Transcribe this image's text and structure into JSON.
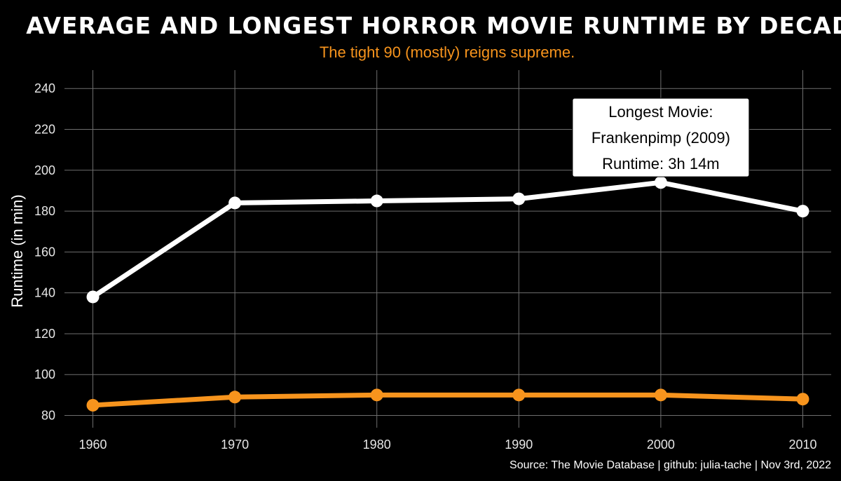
{
  "chart_data": {
    "type": "line",
    "title": "AVERAGE AND LONGEST HORROR MOVIE RUNTIME BY DECADE",
    "subtitle": "The tight 90 (mostly) reigns supreme.",
    "xlabel": "",
    "ylabel": "Runtime (in min)",
    "x": [
      1960,
      1970,
      1980,
      1990,
      2000,
      2010
    ],
    "x_tick_labels": [
      "1960",
      "1970",
      "1980",
      "1990",
      "2000",
      "2010"
    ],
    "y_ticks": [
      80,
      100,
      120,
      140,
      160,
      180,
      200,
      220,
      240
    ],
    "y_tick_labels": [
      "80",
      "100",
      "120",
      "140",
      "160",
      "180",
      "200",
      "220",
      "240"
    ],
    "xlim": [
      1958,
      2012
    ],
    "ylim": [
      74,
      249
    ],
    "grid": true,
    "legend": "none",
    "series": [
      {
        "color": "#ffffff",
        "values": [
          138,
          184,
          185,
          186,
          194,
          180
        ]
      },
      {
        "color": "#f7941d",
        "values": [
          85,
          89,
          90,
          90,
          90,
          88
        ]
      }
    ],
    "annotation": {
      "lines": [
        "Longest Movie:",
        "Frankenpimp (2009)",
        "Runtime: 3h 14m"
      ],
      "x": 2000,
      "y": 216
    },
    "caption": "Source: The Movie Database | github: julia-tache | Nov 3rd, 2022"
  },
  "colors": {
    "background": "#000000",
    "grid": "#6e6e6e",
    "text": "#ffffff",
    "accent": "#f7941d"
  }
}
